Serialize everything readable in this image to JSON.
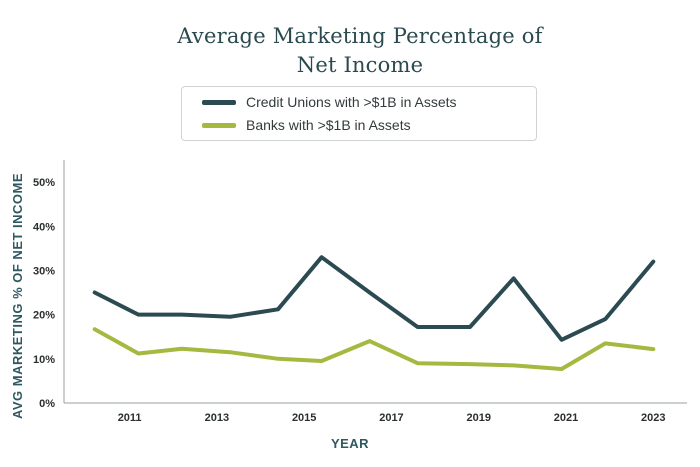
{
  "chart_data": {
    "type": "line",
    "title": [
      "Average Marketing Percentage of",
      "Net Income"
    ],
    "xlabel": "YEAR",
    "ylabel": "AVG MARKETING % OF NET INCOME",
    "ylim": [
      0,
      55
    ],
    "yticks": [
      0,
      10,
      20,
      30,
      40,
      50
    ],
    "ytick_labels": [
      "0%",
      "10%",
      "20%",
      "30%",
      "40%",
      "50%"
    ],
    "xlim": [
      2010,
      2023.2
    ],
    "xticks": [
      2011,
      2013,
      2015,
      2017,
      2019,
      2021,
      2023
    ],
    "xtick_labels": [
      "2011",
      "2013",
      "2015",
      "2017",
      "2019",
      "2021",
      "2023"
    ],
    "legend_position": "top-center",
    "series": [
      {
        "name": "Credit Unions with >$1B in Assets",
        "color": "#2b4a51",
        "x": [
          2010.2,
          2011.2,
          2012.2,
          2013.3,
          2014.4,
          2015.4,
          2016.5,
          2017.6,
          2018.8,
          2019.8,
          2020.9,
          2021.9,
          2023.0
        ],
        "values": [
          25,
          20,
          20,
          19.5,
          21.2,
          33,
          25,
          17.2,
          17.2,
          28.2,
          14.3,
          19,
          32
        ]
      },
      {
        "name": "Banks with >$1B in Assets",
        "color": "#a4b940",
        "x": [
          2010.2,
          2011.2,
          2012.2,
          2013.3,
          2014.4,
          2015.4,
          2016.5,
          2017.6,
          2018.8,
          2019.8,
          2020.9,
          2021.9,
          2023.0
        ],
        "values": [
          16.7,
          11.2,
          12.3,
          11.5,
          10,
          9.5,
          14,
          9,
          8.8,
          8.5,
          7.7,
          13.5,
          12.2
        ]
      }
    ]
  }
}
